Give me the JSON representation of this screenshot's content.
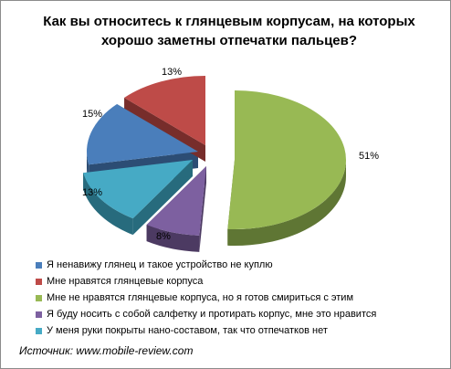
{
  "chart_data": {
    "type": "pie",
    "title": "Как вы относитесь к глянцевым корпусам, на которых хорошо заметны отпечатки пальцев?",
    "values": [
      15,
      13,
      51,
      8,
      13
    ],
    "labels": [
      "15%",
      "13%",
      "51%",
      "8%",
      "13%"
    ],
    "legend": [
      "Я ненавижу глянец и такое устройство не куплю",
      "Мне нравятся глянцевые корпуса",
      "Мне не нравятся глянцевые корпуса, но я готов смириться с этим",
      "Я буду носить с собой салфетку и протирать корпус, мне это нравится",
      "У меня руки покрыты нано-составом, так что отпечатков нет"
    ],
    "colors": [
      "#4a7ebb",
      "#be4b48",
      "#98b954",
      "#7d60a0",
      "#46aac5"
    ],
    "dark_colors": [
      "#2c4d74",
      "#772d2b",
      "#5f7634",
      "#4c3a62",
      "#276b7d"
    ],
    "legend_placement": "bottom",
    "exploded": true,
    "style": "3d"
  },
  "source": "Источник: www.mobile-review.com"
}
